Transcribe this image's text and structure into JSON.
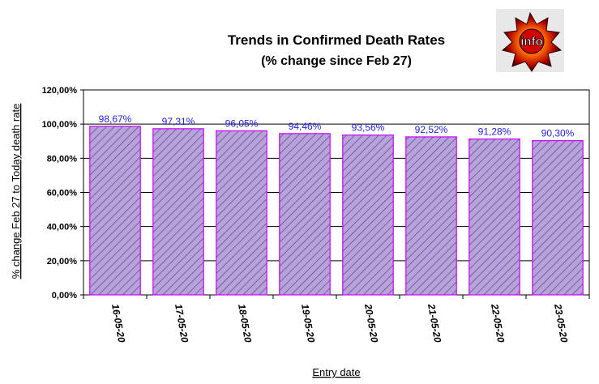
{
  "chart_data": {
    "type": "bar",
    "title": "Trends in Confirmed Death Rates",
    "subtitle": "(% change since Feb 27)",
    "xlabel": "Entry date",
    "ylabel": "% change Feb 27 to Today death rate",
    "categories": [
      "16-05-20",
      "17-05-20",
      "18-05-20",
      "19-05-20",
      "20-05-20",
      "21-05-20",
      "22-05-20",
      "23-05-20"
    ],
    "values": [
      98.67,
      97.31,
      96.05,
      94.46,
      93.56,
      92.52,
      91.28,
      90.3
    ],
    "value_labels": [
      "98,67%",
      "97,31%",
      "96,05%",
      "94,46%",
      "93,56%",
      "92,52%",
      "91,28%",
      "90,30%"
    ],
    "y_ticks": [
      0,
      20,
      40,
      60,
      80,
      100,
      120
    ],
    "y_tick_labels": [
      "0,00%",
      "20,00%",
      "40,00%",
      "60,00%",
      "80,00%",
      "100,00%",
      "120,00%"
    ],
    "ylim": [
      0,
      120
    ],
    "grid": true,
    "legend": "none",
    "colors": {
      "bar_fill": "#b8a3d6",
      "bar_hatch": "#5b3fa8",
      "bar_border": "#cc00ff",
      "data_label": "#2222ee",
      "grid": "#000000"
    }
  },
  "logo": {
    "text": "info",
    "icon": "starburst-logo-icon"
  }
}
